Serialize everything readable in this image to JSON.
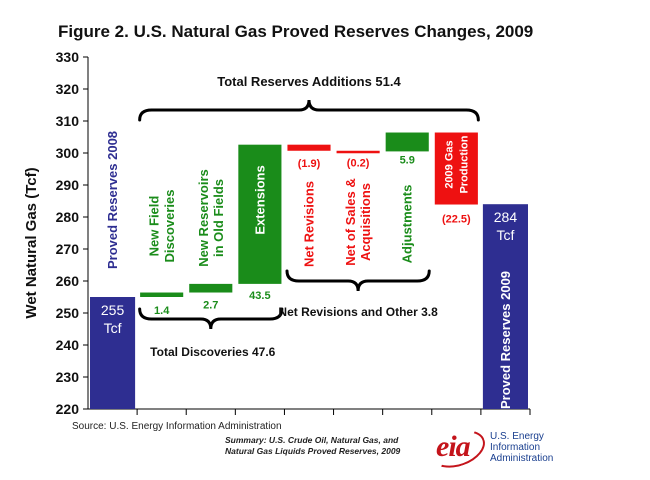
{
  "title": "Figure 2. U.S. Natural Gas Proved Reserves Changes, 2009",
  "source": "Source: U.S. Energy Information Administration",
  "summary": [
    "Summary: U.S. Crude Oil, Natural Gas, and",
    "Natural Gas Liquids Proved Reserves, 2009"
  ],
  "logo": {
    "mark": "eia",
    "lines": [
      "U.S. Energy",
      "Information",
      "Administration"
    ]
  },
  "colors": {
    "endpoint": "#2e2e91",
    "addition": "#1a8c1a",
    "reduction": "#ee1111",
    "axis": "#000000"
  },
  "chart_data": {
    "type": "bar",
    "subtype": "waterfall",
    "ylabel": "Wet Natural Gas (Tcf)",
    "ylim": [
      220,
      330
    ],
    "yticks": [
      220,
      230,
      240,
      250,
      260,
      270,
      280,
      290,
      300,
      310,
      320,
      330
    ],
    "grid": false,
    "bars": [
      {
        "label": "Proved Reserves 2008",
        "kind": "endpoint",
        "bottom": 220,
        "top": 255,
        "value_label": "255\nTcf"
      },
      {
        "label": "New Field\nDiscoveries",
        "kind": "addition",
        "bottom": 255,
        "top": 256.4,
        "value_label": "1.4"
      },
      {
        "label": "New Reservoirs\nin Old Fields",
        "kind": "addition",
        "bottom": 256.4,
        "top": 259.1,
        "value_label": "2.7"
      },
      {
        "label": "Extensions",
        "kind": "addition",
        "bottom": 259.1,
        "top": 302.6,
        "value_label": "43.5"
      },
      {
        "label": "Net Revisions",
        "kind": "reduction",
        "bottom": 300.7,
        "top": 302.6,
        "value_label": "(1.9)"
      },
      {
        "label": "Net of Sales &\nAcquisitions",
        "kind": "reduction",
        "bottom": 300.5,
        "top": 300.7,
        "value_label": "(0.2)"
      },
      {
        "label": "Adjustments",
        "kind": "addition",
        "bottom": 300.5,
        "top": 306.4,
        "value_label": "5.9"
      },
      {
        "label": "2009 Gas\nProduction",
        "kind": "reduction",
        "bottom": 283.9,
        "top": 306.4,
        "value_label": "(22.5)"
      },
      {
        "label": "Proved Reserves 2009",
        "kind": "endpoint",
        "bottom": 220,
        "top": 284,
        "value_label": "284\nTcf"
      }
    ],
    "annotations": {
      "total_additions": "Total Reserves Additions 51.4",
      "total_discoveries": "Total Discoveries 47.6",
      "net_revisions_other": "Net Revisions and Other 3.8"
    }
  }
}
